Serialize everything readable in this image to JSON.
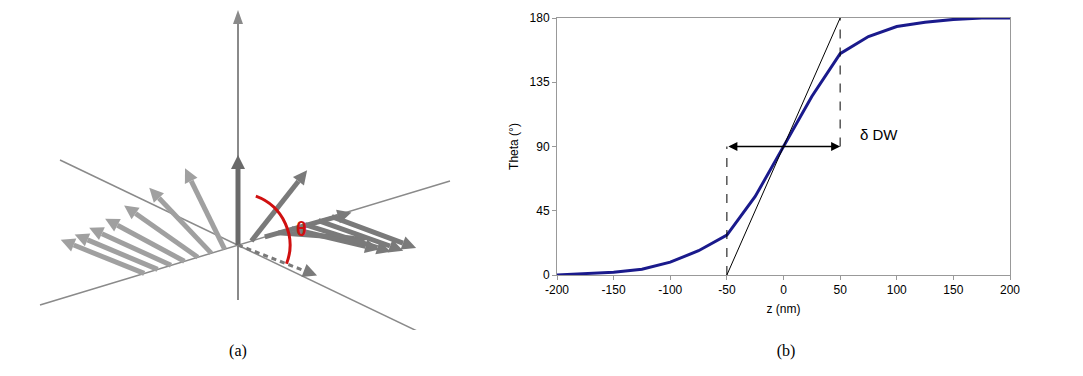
{
  "chart_data": {
    "type": "line",
    "x": [
      -200,
      -175,
      -150,
      -125,
      -100,
      -75,
      -50,
      -25,
      0,
      25,
      50,
      75,
      100,
      125,
      150,
      175,
      200
    ],
    "values": [
      0,
      1,
      2,
      4,
      9,
      17,
      28,
      55,
      90,
      125,
      155,
      167,
      174,
      177,
      179,
      180,
      180
    ],
    "color": "#1a1a8c",
    "xlabel": "z (nm)",
    "ylabel": "Theta (°)",
    "xlim": [
      -200,
      200
    ],
    "xticks": [
      -200,
      -150,
      -100,
      -50,
      0,
      50,
      100,
      150,
      200
    ],
    "ylim": [
      0,
      180
    ],
    "yticks": [
      0,
      45,
      90,
      135,
      180
    ],
    "grid": false,
    "tangent": {
      "x": [
        -50,
        50
      ],
      "y": [
        0,
        180
      ]
    },
    "annotations": [
      {
        "text": "δ DW",
        "x": [
          -50,
          50
        ],
        "y": 90
      }
    ],
    "caption": "(b)"
  },
  "diagram": {
    "angle_label": "θ",
    "caption": "(a)"
  }
}
